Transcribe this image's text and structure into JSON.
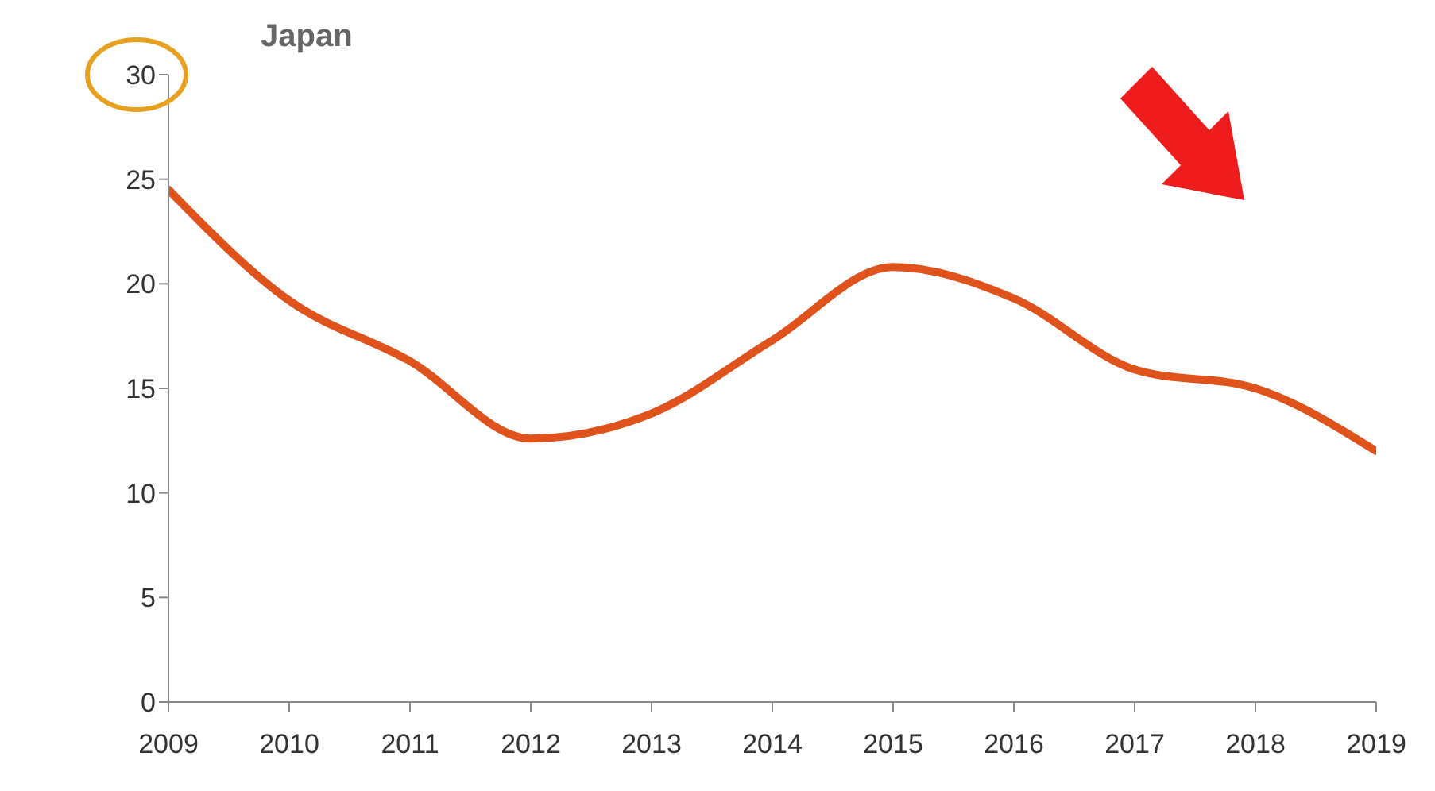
{
  "chart_data": {
    "type": "line",
    "title": "Japan",
    "x": [
      2009,
      2010,
      2011,
      2012,
      2013,
      2014,
      2015,
      2016,
      2017,
      2018,
      2019
    ],
    "series": [
      {
        "color": "#e0521b",
        "values": [
          24.5,
          19.2,
          16.3,
          12.6,
          13.8,
          17.3,
          20.8,
          19.3,
          15.9,
          15,
          12
        ]
      }
    ],
    "xlim": [
      2009,
      2019
    ],
    "xticks": [
      2009,
      2010,
      2011,
      2012,
      2013,
      2014,
      2015,
      2016,
      2017,
      2018,
      2019
    ],
    "ylim": [
      0,
      30
    ],
    "yticks": [
      0,
      5,
      10,
      15,
      20,
      25,
      30
    ],
    "grid": false,
    "legend": false,
    "marker": "none",
    "line_style": "solid"
  }
}
